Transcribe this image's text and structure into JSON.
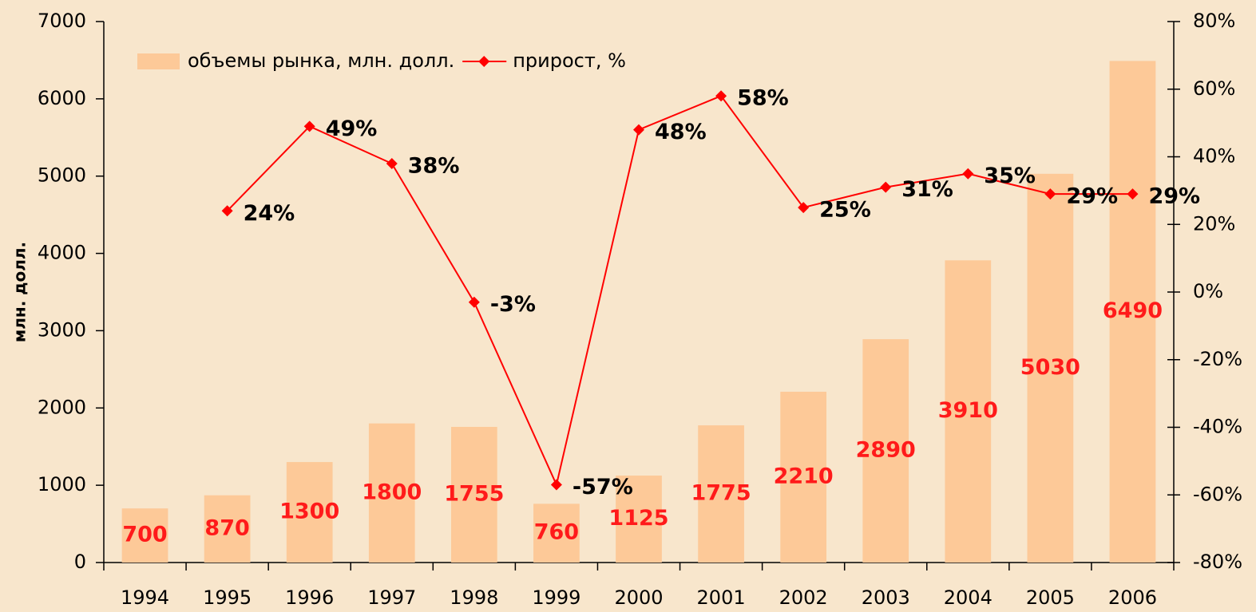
{
  "chart_data": {
    "type": "bar_line",
    "y_label": "млн. долл.",
    "categories": [
      "1994",
      "1995",
      "1996",
      "1997",
      "1998",
      "1999",
      "2000",
      "2001",
      "2002",
      "2003",
      "2004",
      "2005",
      "2006"
    ],
    "series": [
      {
        "name": "объемы рынка, млн. долл.",
        "type": "bar",
        "color": "#fdc998",
        "label_color": "#ff1a1a",
        "values": [
          700,
          870,
          1300,
          1800,
          1755,
          760,
          1125,
          1775,
          2210,
          2890,
          3910,
          5030,
          6490
        ]
      },
      {
        "name": "прирост, %",
        "type": "line",
        "axis": "y2",
        "color": "#ff0000",
        "label_color": "#000000",
        "values": [
          null,
          24,
          49,
          38,
          -3,
          -57,
          48,
          58,
          25,
          31,
          35,
          29,
          29
        ],
        "value_labels": [
          null,
          "24%",
          "49%",
          "38%",
          "-3%",
          "-57%",
          "48%",
          "58%",
          "25%",
          "31%",
          "35%",
          "29%",
          "29%"
        ]
      }
    ],
    "ylim": [
      0,
      7000
    ],
    "yticks": [
      0,
      1000,
      2000,
      3000,
      4000,
      5000,
      6000,
      7000
    ],
    "y2lim": [
      -80,
      80
    ],
    "y2ticks": [
      {
        "value": -80,
        "label": "-80%"
      },
      {
        "value": -60,
        "label": "-60%"
      },
      {
        "value": -40,
        "label": "-40%"
      },
      {
        "value": -20,
        "label": "-20%"
      },
      {
        "value": 0,
        "label": "0%"
      },
      {
        "value": 20,
        "label": "20%"
      },
      {
        "value": 40,
        "label": "40%"
      },
      {
        "value": 60,
        "label": "60%"
      },
      {
        "value": 80,
        "label": "80%"
      }
    ],
    "legend": "top-left",
    "background": "#f8e6cc"
  }
}
